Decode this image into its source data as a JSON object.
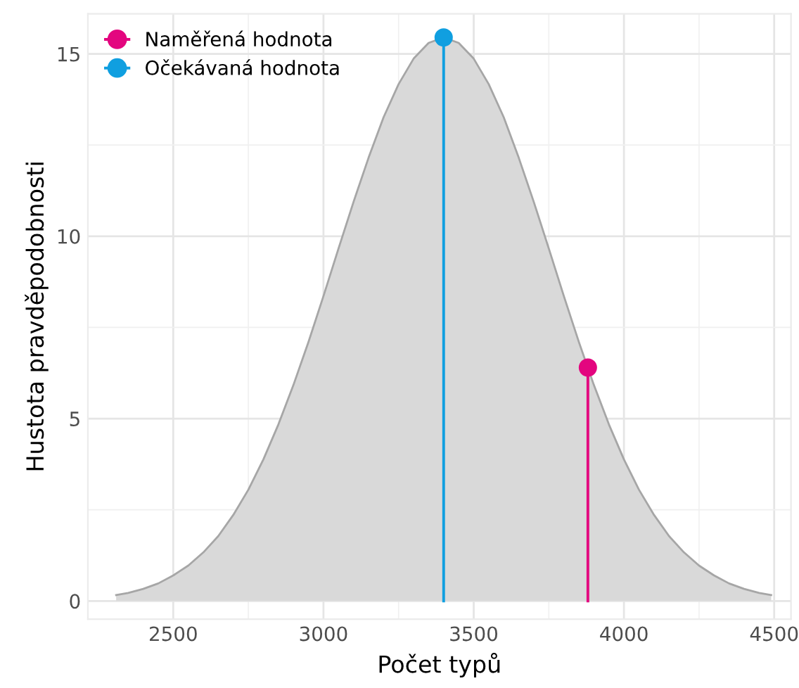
{
  "chart_data": {
    "type": "area",
    "xlabel": "Počet typů",
    "ylabel": "Hustota pravděpodobnosti",
    "xlim": [
      2216,
      4556
    ],
    "ylim": [
      -0.5,
      16.1
    ],
    "xticks": [
      2500,
      3000,
      3500,
      4000,
      4500
    ],
    "yticks": [
      0,
      5,
      10,
      15
    ],
    "grid": true,
    "legend": "top left",
    "series": [
      {
        "color": "#a6a6a6",
        "x": [
          2310,
          2350,
          2400,
          2450,
          2500,
          2550,
          2600,
          2650,
          2700,
          2750,
          2800,
          2850,
          2900,
          2950,
          3000,
          3050,
          3100,
          3150,
          3200,
          3250,
          3300,
          3350,
          3400,
          3450,
          3500,
          3550,
          3600,
          3650,
          3700,
          3750,
          3800,
          3850,
          3900,
          3950,
          4000,
          4050,
          4100,
          4150,
          4200,
          4250,
          4300,
          4350,
          4400,
          4450,
          4490
        ],
        "values": [
          0.16,
          0.22,
          0.33,
          0.48,
          0.7,
          0.97,
          1.33,
          1.78,
          2.36,
          3.05,
          3.88,
          4.84,
          5.92,
          7.1,
          8.36,
          9.66,
          10.94,
          12.15,
          13.26,
          14.17,
          14.87,
          15.3,
          15.45,
          15.3,
          14.87,
          14.17,
          13.26,
          12.15,
          10.94,
          9.66,
          8.36,
          7.1,
          5.92,
          4.84,
          3.88,
          3.05,
          2.36,
          1.78,
          1.33,
          0.97,
          0.7,
          0.48,
          0.33,
          0.22,
          0.16
        ]
      },
      {
        "type": "lollipop",
        "marker": "circle",
        "name": "Naměřená hodnota",
        "color": "#e3067f",
        "x": [
          3880
        ],
        "values": [
          6.4
        ]
      },
      {
        "type": "lollipop",
        "marker": "circle",
        "name": "Očekávaná hodnota",
        "color": "#109fe0",
        "x": [
          3400
        ],
        "values": [
          15.45
        ]
      }
    ]
  }
}
